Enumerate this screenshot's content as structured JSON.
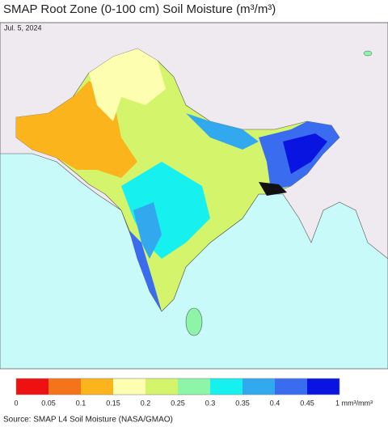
{
  "header": {
    "title": "SMAP Root Zone (0-100 cm) Soil Moisture (m³/m³)",
    "date": "Jul. 5, 2024"
  },
  "legend": {
    "colors": [
      "#ee1111",
      "#f5741a",
      "#fbb41b",
      "#fefeb0",
      "#d4f56b",
      "#8df5a8",
      "#16f0ef",
      "#32a8ef",
      "#3a6cf0",
      "#0a14e0"
    ],
    "ticks": [
      0,
      0.05,
      0.1,
      0.15,
      0.2,
      0.25,
      0.3,
      0.35,
      0.4,
      0.45
    ],
    "end_label": "1 mm³/mm³"
  },
  "source": "Source: SMAP L4 Soil Moisture (NASA/GMAO)"
}
